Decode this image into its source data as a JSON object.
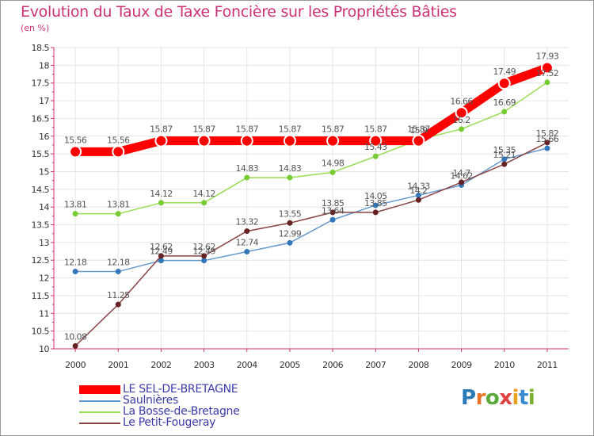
{
  "title": "Evolution du Taux de Taxe Foncière sur les Propriétés Bâties",
  "unit": "(en %)",
  "logo": {
    "text": "Proxiti",
    "letters": [
      "P",
      "r",
      "o",
      "x",
      "i",
      "t",
      "i"
    ],
    "colors": [
      "#2a7ab8",
      "#e8742a",
      "#5aaa3a",
      "#e04040",
      "#e8a020",
      "#3a8ad0",
      "#7ab030"
    ]
  },
  "chart_data": {
    "type": "line",
    "title": "Evolution du Taux de Taxe Foncière sur les Propriétés Bâties",
    "ylabel": "(en %)",
    "xlabel": "",
    "categories": [
      "2000",
      "2001",
      "2002",
      "2003",
      "2004",
      "2005",
      "2006",
      "2007",
      "2008",
      "2009",
      "2010",
      "2011"
    ],
    "ylim": [
      10,
      18.5
    ],
    "yticks": [
      "10",
      "10.5",
      "11",
      "11.5",
      "12",
      "12.5",
      "13",
      "13.5",
      "14",
      "14.5",
      "15",
      "15.5",
      "16",
      "16.5",
      "17",
      "17.5",
      "18",
      "18.5"
    ],
    "series": [
      {
        "name": "LE SEL-DE-BRETAGNE",
        "color": "#ff0000",
        "values": [
          15.56,
          15.56,
          15.87,
          15.87,
          15.87,
          15.87,
          15.87,
          15.87,
          15.87,
          16.66,
          17.49,
          17.93
        ],
        "labels": [
          "15.56",
          "15.56",
          "15.87",
          "15.87",
          "15.87",
          "15.87",
          "15.87",
          "15.87",
          "15.87",
          "16.66",
          "17.49",
          "17.93"
        ]
      },
      {
        "name": "Saulnières",
        "color": "#6699cc",
        "values": [
          12.18,
          12.18,
          12.49,
          12.49,
          12.74,
          12.99,
          13.64,
          14.05,
          14.33,
          14.62,
          15.35,
          15.66
        ],
        "labels": [
          "12.18",
          "12.18",
          "12.49",
          "12.49",
          "12.74",
          "12.99",
          "13.64",
          "14.05",
          "14.33",
          "14.62",
          "15.35",
          "15.66"
        ]
      },
      {
        "name": "La Bosse-de-Bretagne",
        "color": "#99dd55",
        "values": [
          13.81,
          13.81,
          14.12,
          14.12,
          14.83,
          14.83,
          14.98,
          15.43,
          15.9,
          16.2,
          16.69,
          17.52
        ],
        "labels": [
          "13.81",
          "13.81",
          "14.12",
          "14.12",
          "14.83",
          "14.83",
          "14.98",
          "15.43",
          "15.9",
          "16.2",
          "16.69",
          "17.52"
        ]
      },
      {
        "name": "Le Petit-Fougeray",
        "color": "#884444",
        "values": [
          10.08,
          11.25,
          12.62,
          12.62,
          13.32,
          13.55,
          13.85,
          13.85,
          14.2,
          14.7,
          15.21,
          15.82
        ],
        "labels": [
          "10.08",
          "11.25",
          "12.62",
          "12.62",
          "13.32",
          "13.55",
          "13.85",
          "13.85",
          "14.2",
          "14.7",
          "15.21",
          "15.82"
        ]
      }
    ],
    "legend": [
      "LE SEL-DE-BRETAGNE",
      "Saulnières",
      "La Bosse-de-Bretagne",
      "Le Petit-Fougeray"
    ]
  }
}
